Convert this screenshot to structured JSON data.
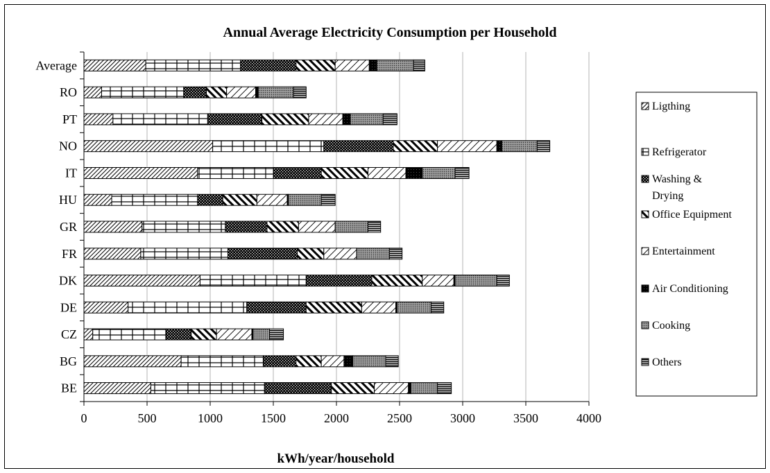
{
  "chart_data": {
    "type": "bar",
    "orientation": "horizontal",
    "stacked": true,
    "title": "Annual Average Electricity Consumption per Household",
    "xlabel": "kWh/year/household",
    "ylabel": "",
    "xlim": [
      0,
      4000
    ],
    "x_ticks": [
      0,
      500,
      1000,
      1500,
      2000,
      2500,
      3000,
      3500,
      4000
    ],
    "grid": "vertical",
    "legend": "right",
    "categories": [
      "Average",
      "RO",
      "PT",
      "NO",
      "IT",
      "HU",
      "GR",
      "FR",
      "DK",
      "DE",
      "CZ",
      "BG",
      "BE"
    ],
    "series": [
      {
        "name": "Ligthing",
        "pattern": "diagonal-up",
        "values": [
          490,
          140,
          230,
          1020,
          900,
          220,
          460,
          450,
          920,
          350,
          70,
          770,
          530
        ]
      },
      {
        "name": "Refrigerator",
        "pattern": "grid-bricks",
        "values": [
          750,
          650,
          750,
          880,
          600,
          680,
          660,
          690,
          840,
          940,
          580,
          650,
          900
        ]
      },
      {
        "name": "Washing & Drying",
        "pattern": "dots-dark",
        "values": [
          440,
          180,
          430,
          550,
          380,
          200,
          330,
          550,
          520,
          470,
          200,
          260,
          530
        ]
      },
      {
        "name": "Office Equipment",
        "pattern": "diagonal-down",
        "values": [
          310,
          160,
          370,
          350,
          370,
          270,
          250,
          210,
          400,
          440,
          200,
          200,
          340
        ]
      },
      {
        "name": "Entertainment",
        "pattern": "diagonal-wide",
        "values": [
          270,
          230,
          270,
          470,
          300,
          240,
          290,
          260,
          250,
          270,
          280,
          180,
          270
        ]
      },
      {
        "name": "Air Conditioning",
        "pattern": "dark-solid",
        "values": [
          60,
          20,
          60,
          40,
          130,
          10,
          0,
          0,
          10,
          10,
          10,
          70,
          20
        ]
      },
      {
        "name": "Cooking",
        "pattern": "crosshatch-dot",
        "values": [
          290,
          280,
          260,
          280,
          260,
          260,
          260,
          260,
          330,
          270,
          130,
          260,
          210
        ]
      },
      {
        "name": "Others",
        "pattern": "horizontal",
        "values": [
          90,
          100,
          110,
          100,
          110,
          110,
          100,
          100,
          100,
          100,
          110,
          100,
          110
        ]
      }
    ]
  }
}
